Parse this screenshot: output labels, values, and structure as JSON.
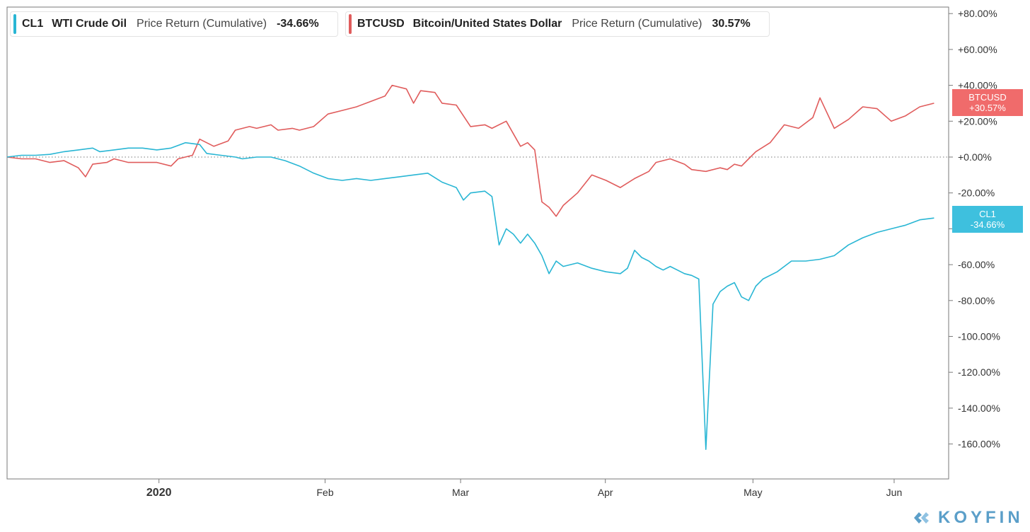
{
  "legend": [
    {
      "symbol": "CL1",
      "name": "WTI Crude Oil",
      "metric": "Price Return (Cumulative)",
      "value": "-34.66%",
      "color": "#29b6d4"
    },
    {
      "symbol": "BTCUSD",
      "name": "Bitcoin/United States Dollar",
      "metric": "Price Return (Cumulative)",
      "value": "30.57%",
      "color": "#e05c5c"
    }
  ],
  "badges": {
    "btc": {
      "label": "BTCUSD",
      "value": "+30.57%",
      "color": "#f06b6b"
    },
    "cl1": {
      "label": "CL1",
      "value": "-34.66%",
      "color": "#3ec0de"
    }
  },
  "brand": {
    "name": "KOYFIN",
    "color": "#5b9fc9"
  },
  "chart_data": {
    "type": "line",
    "title": "",
    "xlabel": "",
    "ylabel": "",
    "y_unit": "%",
    "ylim": [
      -177,
      80
    ],
    "xlim": [
      0,
      131
    ],
    "y_ticks": [
      80,
      60,
      40,
      20,
      0,
      -20,
      -40,
      -60,
      -80,
      -100,
      -120,
      -140,
      -160
    ],
    "y_tick_labels": [
      "+80.00%",
      "+60.00%",
      "+40.00%",
      "+20.00%",
      "+0.00%",
      "-20.00%",
      "-40.00%",
      "-60.00%",
      "-80.00%",
      "-100.00%",
      "-120.00%",
      "-140.00%",
      "-160.00%"
    ],
    "x_ticks": [
      {
        "x": 21.3,
        "label": "2020",
        "bold": true
      },
      {
        "x": 44.6,
        "label": "Feb",
        "bold": false
      },
      {
        "x": 63.6,
        "label": "Mar",
        "bold": false
      },
      {
        "x": 83.9,
        "label": "Apr",
        "bold": false
      },
      {
        "x": 104.6,
        "label": "May",
        "bold": false
      },
      {
        "x": 124.4,
        "label": "Jun",
        "bold": false
      }
    ],
    "zero_line": 0,
    "series": [
      {
        "name": "CL1",
        "color": "#29b6d4",
        "points": [
          [
            0,
            0
          ],
          [
            2,
            1
          ],
          [
            4,
            1
          ],
          [
            6,
            1.5
          ],
          [
            8,
            3
          ],
          [
            10,
            4
          ],
          [
            12,
            5
          ],
          [
            13,
            3
          ],
          [
            15,
            4
          ],
          [
            17,
            5
          ],
          [
            19,
            5
          ],
          [
            21,
            4
          ],
          [
            23,
            5
          ],
          [
            25,
            8
          ],
          [
            27,
            7
          ],
          [
            28,
            2
          ],
          [
            30,
            1
          ],
          [
            32,
            0
          ],
          [
            33,
            -1
          ],
          [
            35,
            0
          ],
          [
            37,
            0
          ],
          [
            39,
            -2
          ],
          [
            41,
            -5
          ],
          [
            43,
            -9
          ],
          [
            45,
            -12
          ],
          [
            47,
            -13
          ],
          [
            49,
            -12
          ],
          [
            51,
            -13
          ],
          [
            53,
            -12
          ],
          [
            55,
            -11
          ],
          [
            57,
            -10
          ],
          [
            59,
            -9
          ],
          [
            61,
            -14
          ],
          [
            63,
            -17
          ],
          [
            64,
            -24
          ],
          [
            65,
            -20
          ],
          [
            67,
            -19
          ],
          [
            68,
            -22
          ],
          [
            69,
            -49
          ],
          [
            70,
            -40
          ],
          [
            71,
            -43
          ],
          [
            72,
            -48
          ],
          [
            73,
            -43
          ],
          [
            74,
            -48
          ],
          [
            75,
            -55
          ],
          [
            76,
            -65
          ],
          [
            77,
            -58
          ],
          [
            78,
            -61
          ],
          [
            80,
            -59
          ],
          [
            82,
            -62
          ],
          [
            84,
            -64
          ],
          [
            86,
            -65
          ],
          [
            87,
            -62
          ],
          [
            88,
            -52
          ],
          [
            89,
            -56
          ],
          [
            90,
            -58
          ],
          [
            91,
            -61
          ],
          [
            92,
            -63
          ],
          [
            93,
            -61
          ],
          [
            95,
            -65
          ],
          [
            96,
            -66
          ],
          [
            97,
            -68
          ],
          [
            98,
            -163
          ],
          [
            99,
            -82
          ],
          [
            100,
            -75
          ],
          [
            101,
            -72
          ],
          [
            102,
            -70
          ],
          [
            103,
            -78
          ],
          [
            104,
            -80
          ],
          [
            105,
            -72
          ],
          [
            106,
            -68
          ],
          [
            108,
            -64
          ],
          [
            110,
            -58
          ],
          [
            112,
            -58
          ],
          [
            114,
            -57
          ],
          [
            116,
            -55
          ],
          [
            118,
            -49
          ],
          [
            120,
            -45
          ],
          [
            122,
            -42
          ],
          [
            124,
            -40
          ],
          [
            126,
            -38
          ],
          [
            128,
            -35
          ],
          [
            130,
            -34
          ]
        ]
      },
      {
        "name": "BTCUSD",
        "color": "#e05c5c",
        "points": [
          [
            0,
            0
          ],
          [
            2,
            -1
          ],
          [
            4,
            -1
          ],
          [
            6,
            -3
          ],
          [
            8,
            -2
          ],
          [
            10,
            -6
          ],
          [
            11,
            -11
          ],
          [
            12,
            -4
          ],
          [
            14,
            -3
          ],
          [
            15,
            -1
          ],
          [
            17,
            -3
          ],
          [
            19,
            -3
          ],
          [
            21,
            -3
          ],
          [
            23,
            -5
          ],
          [
            24,
            -1
          ],
          [
            26,
            1
          ],
          [
            27,
            10
          ],
          [
            29,
            6
          ],
          [
            31,
            9
          ],
          [
            32,
            15
          ],
          [
            34,
            17
          ],
          [
            35,
            16
          ],
          [
            37,
            18
          ],
          [
            38,
            15
          ],
          [
            40,
            16
          ],
          [
            41,
            15
          ],
          [
            43,
            17
          ],
          [
            45,
            24
          ],
          [
            47,
            26
          ],
          [
            49,
            28
          ],
          [
            51,
            31
          ],
          [
            53,
            34
          ],
          [
            54,
            40
          ],
          [
            56,
            38
          ],
          [
            57,
            30
          ],
          [
            58,
            37
          ],
          [
            60,
            36
          ],
          [
            61,
            30
          ],
          [
            63,
            29
          ],
          [
            65,
            17
          ],
          [
            67,
            18
          ],
          [
            68,
            16
          ],
          [
            70,
            20
          ],
          [
            72,
            6
          ],
          [
            73,
            8
          ],
          [
            74,
            4
          ],
          [
            75,
            -25
          ],
          [
            76,
            -28
          ],
          [
            77,
            -33
          ],
          [
            78,
            -27
          ],
          [
            80,
            -20
          ],
          [
            82,
            -10
          ],
          [
            84,
            -13
          ],
          [
            86,
            -17
          ],
          [
            88,
            -12
          ],
          [
            90,
            -8
          ],
          [
            91,
            -3
          ],
          [
            93,
            -1
          ],
          [
            95,
            -4
          ],
          [
            96,
            -7
          ],
          [
            98,
            -8
          ],
          [
            100,
            -6
          ],
          [
            101,
            -7
          ],
          [
            102,
            -4
          ],
          [
            103,
            -5
          ],
          [
            104,
            -1
          ],
          [
            105,
            3
          ],
          [
            107,
            8
          ],
          [
            109,
            18
          ],
          [
            111,
            16
          ],
          [
            113,
            22
          ],
          [
            114,
            33
          ],
          [
            116,
            16
          ],
          [
            118,
            21
          ],
          [
            120,
            28
          ],
          [
            122,
            27
          ],
          [
            124,
            20
          ],
          [
            126,
            23
          ],
          [
            128,
            28
          ],
          [
            130,
            30
          ]
        ]
      }
    ]
  }
}
